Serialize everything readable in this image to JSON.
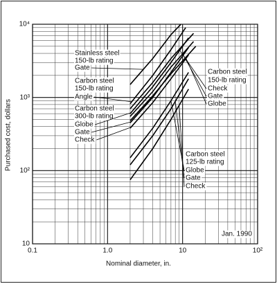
{
  "chart_data": {
    "type": "line",
    "x_label": "Nominal diameter, in.",
    "y_label": "Purchased cost, dollars",
    "log_x": true,
    "log_y": true,
    "grid": true,
    "xlim": [
      0.1,
      100
    ],
    "ylim": [
      10,
      10000
    ],
    "xticks": [
      0.1,
      {
        "value": 1,
        "label": "1.0"
      },
      10,
      {
        "value": 100,
        "label": "10²"
      }
    ],
    "yticks": [
      10,
      {
        "value": 100,
        "label": "10²"
      },
      {
        "value": 1000,
        "label": "10³"
      },
      {
        "value": 10000,
        "label": "10⁴"
      }
    ],
    "xminorticks": [
      0.2,
      0.3,
      0.4,
      0.5,
      0.6,
      0.7,
      0.8,
      0.9,
      2,
      3,
      4,
      5,
      6,
      7,
      8,
      9,
      20,
      30,
      40,
      50,
      60,
      70,
      80,
      90
    ],
    "yminorticks": [
      20,
      30,
      40,
      50,
      60,
      70,
      80,
      90,
      200,
      300,
      400,
      500,
      600,
      700,
      800,
      900,
      2000,
      3000,
      4000,
      5000,
      6000,
      7000,
      8000,
      9000
    ],
    "annotations": [
      "Stainless steel",
      "150-lb rating",
      "Carbon steel",
      "150-lb rating",
      "Carbon steel",
      "300-lb rating",
      "Carbon steel",
      "150-lb rating",
      "Carbon steel",
      "125-lb rating",
      "Jan. 1990"
    ],
    "series": [
      {
        "name": "Gate",
        "color": "#000000",
        "x": [
          2,
          4,
          7,
          9.5
        ],
        "values": [
          1500,
          3400,
          7200,
          10000
        ]
      },
      {
        "name": "Angle",
        "color": "#000000",
        "x": [
          2,
          4,
          7,
          11
        ],
        "values": [
          820,
          2000,
          4500,
          9000
        ]
      },
      {
        "name": "Globe",
        "color": "#000000",
        "x": [
          2,
          4,
          7,
          12
        ],
        "values": [
          600,
          1400,
          3000,
          6500
        ]
      },
      {
        "name": "Gate",
        "color": "#000000",
        "x": [
          2,
          4,
          7,
          12
        ],
        "values": [
          450,
          1000,
          2200,
          4800
        ]
      },
      {
        "name": "Check",
        "color": "#000000",
        "x": [
          2,
          4,
          7,
          12
        ],
        "values": [
          380,
          850,
          1800,
          3800
        ]
      },
      {
        "name": "Check",
        "color": "#000000",
        "x": [
          2,
          4,
          7,
          14
        ],
        "values": [
          700,
          1600,
          3400,
          7500
        ]
      },
      {
        "name": "Gate",
        "color": "#000000",
        "x": [
          2,
          4,
          7,
          14
        ],
        "values": [
          550,
          1200,
          2600,
          5800
        ]
      },
      {
        "name": "Globe",
        "color": "#000000",
        "x": [
          2,
          4,
          7,
          15
        ],
        "values": [
          480,
          1050,
          2100,
          5000
        ]
      },
      {
        "name": "Globe",
        "color": "#000000",
        "x": [
          2,
          4,
          7,
          12
        ],
        "values": [
          150,
          380,
          900,
          2200
        ]
      },
      {
        "name": "Gate",
        "color": "#000000",
        "x": [
          2,
          4,
          7,
          12
        ],
        "values": [
          120,
          300,
          700,
          1800
        ]
      },
      {
        "name": "Check",
        "color": "#000000",
        "x": [
          2,
          4,
          7,
          12
        ],
        "values": [
          75,
          200,
          500,
          1300
        ]
      }
    ]
  }
}
